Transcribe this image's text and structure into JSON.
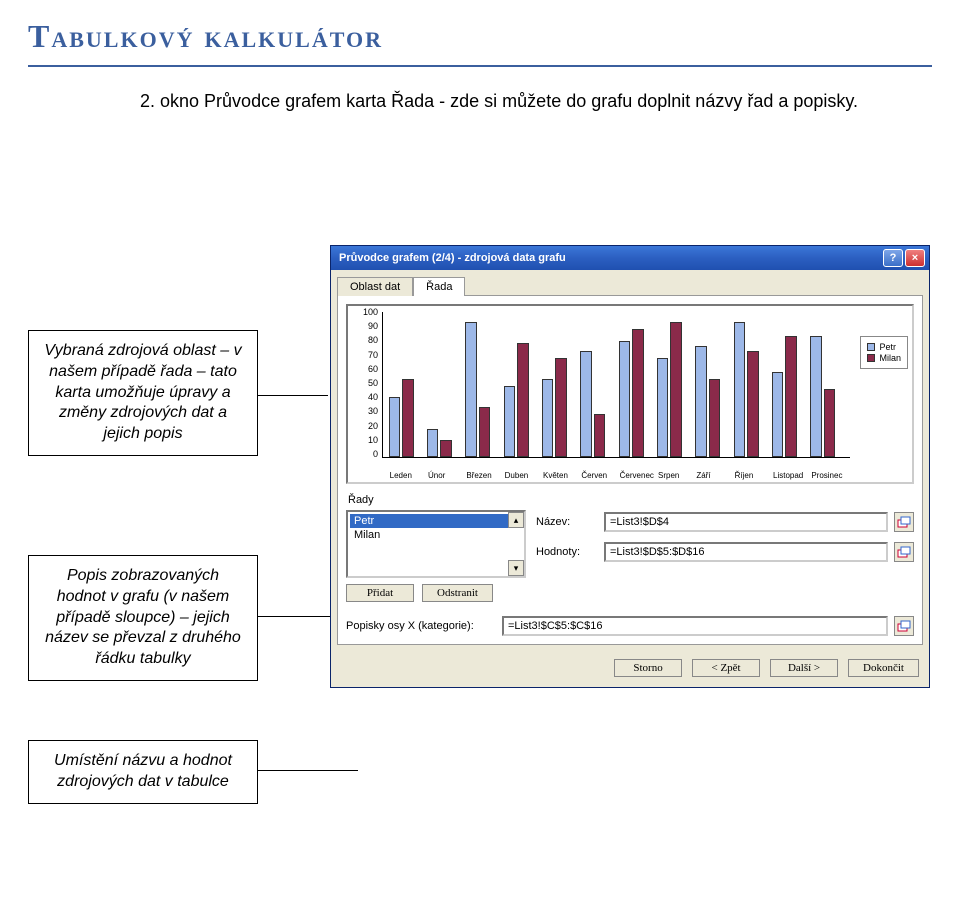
{
  "page": {
    "title": "Tabulkový kalkulátor",
    "intro": "2. okno Průvodce grafem karta Řada - zde si můžete do grafu doplnit názvy řad a popisky."
  },
  "explain": {
    "box1": "Vybraná zdrojová oblast – v našem případě řada – tato karta umožňuje úpravy a změny zdrojových dat a jejich popis",
    "box2": "Popis zobrazovaných hodnot v grafu (v našem případě sloupce) – jejich název se převzal z druhého řádku tabulky",
    "box3": "Umístění názvu a hodnot zdrojových dat v tabulce"
  },
  "dialog": {
    "title": "Průvodce grafem (2/4) - zdrojová data grafu",
    "tabs": {
      "t1": "Oblast dat",
      "t2": "Řada"
    },
    "chart": {
      "type": "bar",
      "categories": [
        "Leden",
        "Únor",
        "Březen",
        "Duben",
        "Květen",
        "Červen",
        "Červenec",
        "Srpen",
        "Září",
        "Říjen",
        "Listopad",
        "Prosinec"
      ],
      "series": [
        {
          "name": "Petr",
          "color": "#9db8e8",
          "values": [
            42,
            20,
            95,
            50,
            55,
            75,
            82,
            70,
            78,
            95,
            60,
            85
          ]
        },
        {
          "name": "Milan",
          "color": "#8b2a4a",
          "values": [
            55,
            12,
            35,
            80,
            70,
            30,
            90,
            95,
            55,
            75,
            85,
            48
          ]
        }
      ],
      "ylim": [
        0,
        100
      ],
      "ytick_step": 10,
      "yticks": [
        0,
        10,
        20,
        30,
        40,
        50,
        60,
        70,
        80,
        90,
        100
      ],
      "background_color": "#ffffff"
    },
    "rady_label": "Řady",
    "list": {
      "items": [
        "Petr",
        "Milan"
      ],
      "selected": 0
    },
    "fields": {
      "name_label": "Název:",
      "name_value": "=List3!$D$4",
      "values_label": "Hodnoty:",
      "values_value": "=List3!$D$5:$D$16"
    },
    "buttons": {
      "add": "Přidat",
      "remove": "Odstranit"
    },
    "category": {
      "label": "Popisky osy X (kategorie):",
      "value": "=List3!$C$5:$C$16"
    },
    "dlg_buttons": {
      "cancel": "Storno",
      "back": "< Zpět",
      "next": "Další >",
      "finish": "Dokončit"
    }
  }
}
